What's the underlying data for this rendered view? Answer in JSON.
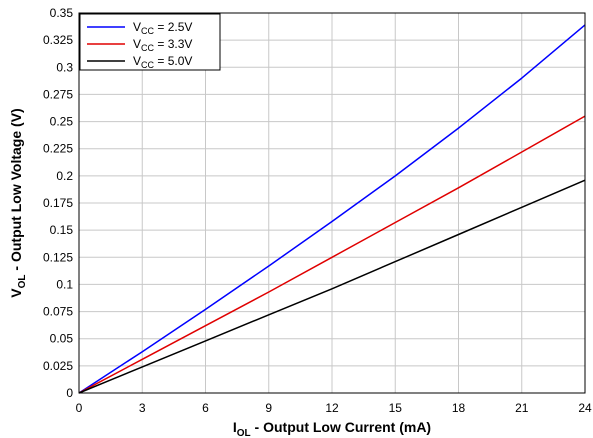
{
  "chart_data": {
    "type": "line",
    "xlabel": {
      "main": "I",
      "sub": "OL",
      "rest": " - Output Low Current (mA)"
    },
    "ylabel": {
      "main": "V",
      "sub": "OL",
      "rest": " - Output Low Voltage (V)"
    },
    "xlim": [
      0,
      24
    ],
    "ylim": [
      0,
      0.35
    ],
    "xticks": [
      0,
      3,
      6,
      9,
      12,
      15,
      18,
      21,
      24
    ],
    "yticks": [
      0,
      0.025,
      0.05,
      0.075,
      0.1,
      0.125,
      0.15,
      0.175,
      0.2,
      0.225,
      0.25,
      0.275,
      0.3,
      0.325,
      0.35
    ],
    "grid": true,
    "legend_position": "top-left",
    "series": [
      {
        "name": {
          "main": "V",
          "sub": "CC",
          "rest": " = 2.5V"
        },
        "color": "#0000ff",
        "x": [
          0,
          3,
          6,
          9,
          12,
          15,
          18,
          21,
          24
        ],
        "y": [
          0,
          0.038,
          0.077,
          0.117,
          0.158,
          0.2,
          0.244,
          0.29,
          0.339
        ]
      },
      {
        "name": {
          "main": "V",
          "sub": "CC",
          "rest": " = 3.3V"
        },
        "color": "#e00000",
        "x": [
          0,
          3,
          6,
          9,
          12,
          15,
          18,
          21,
          24
        ],
        "y": [
          0,
          0.031,
          0.062,
          0.093,
          0.125,
          0.157,
          0.189,
          0.222,
          0.255
        ]
      },
      {
        "name": {
          "main": "V",
          "sub": "CC",
          "rest": " = 5.0V"
        },
        "color": "#000000",
        "x": [
          0,
          3,
          6,
          9,
          12,
          15,
          18,
          21,
          24
        ],
        "y": [
          0,
          0.024,
          0.048,
          0.072,
          0.096,
          0.121,
          0.146,
          0.171,
          0.196
        ]
      }
    ]
  }
}
